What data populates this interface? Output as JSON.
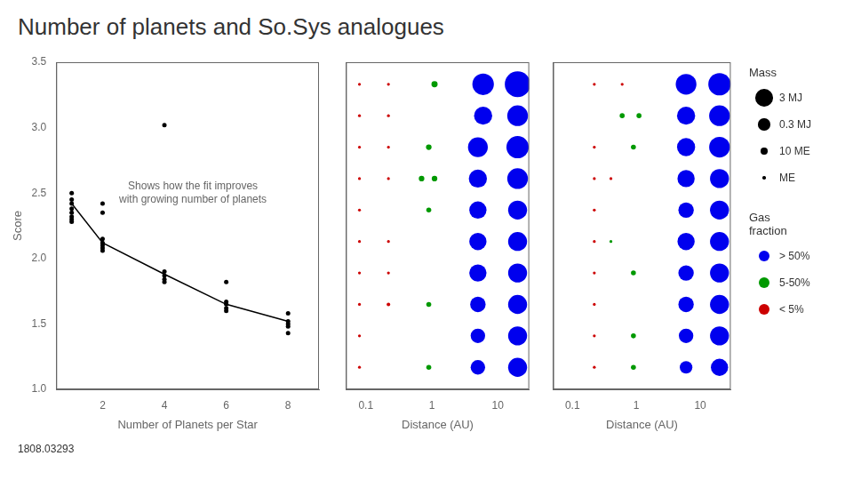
{
  "title": "Number of planets and So.Sys analogues",
  "annotations": [
    "1808.03293"
  ],
  "chart_data": [
    {
      "type": "scatter",
      "xlabel": "Number of Planets per Star",
      "ylabel": "Score",
      "annotations": [
        "Shows how the fit improves\nwith growing number of planets"
      ],
      "xlim": [
        0.5,
        9
      ],
      "ylim": [
        1.0,
        3.5
      ],
      "xticks": [
        2,
        4,
        6,
        8
      ],
      "yticks": [
        {
          "value": 1.0,
          "label": "1.0"
        },
        1.5,
        {
          "value": 2.0,
          "label": "2.0"
        },
        2.5,
        {
          "value": 3.0,
          "label": "3.0"
        },
        3.5
      ],
      "grid": false,
      "series": [
        {
          "type": "scatter",
          "color": "#000000",
          "x": [
            1,
            1,
            1,
            1,
            1,
            1,
            1,
            1,
            2,
            2,
            2,
            2,
            2,
            2,
            2,
            4,
            4,
            4,
            4,
            4,
            6,
            6,
            6,
            6,
            6,
            8,
            8,
            8,
            8,
            8
          ],
          "values": [
            2.5,
            2.45,
            2.42,
            2.38,
            2.35,
            2.32,
            2.3,
            2.28,
            2.42,
            2.35,
            2.15,
            2.12,
            2.1,
            2.08,
            2.06,
            3.02,
            1.9,
            1.87,
            1.84,
            1.82,
            1.82,
            1.67,
            1.65,
            1.62,
            1.6,
            1.58,
            1.52,
            1.5,
            1.48,
            1.43
          ]
        },
        {
          "type": "line",
          "color": "#000000",
          "x": [
            1,
            2,
            4,
            6,
            8
          ],
          "values": [
            2.42,
            2.12,
            1.88,
            1.65,
            1.52
          ]
        }
      ]
    },
    {
      "type": "bubble",
      "xlabel": "Distance (AU)",
      "log": "x",
      "xlim": [
        0.05,
        30
      ],
      "xticks": [
        0.1,
        1,
        10
      ],
      "ylim": [
        0.3,
        10.7
      ],
      "tick_labels": "x",
      "grid": false,
      "series": [
        {
          "x": [
            0.08,
            0.22,
            1.1,
            6.0,
            20.0
          ],
          "values": [
            10,
            10,
            10,
            10,
            10
          ],
          "mass": [
            3,
            3,
            8,
            40,
            50
          ],
          "colors": [
            "#cc0000",
            "#cc0000",
            "#009900",
            "#0000ee",
            "#0000ee"
          ]
        },
        {
          "x": [
            0.08,
            0.22,
            6.0,
            20.0
          ],
          "values": [
            9,
            9,
            9,
            9
          ],
          "mass": [
            3,
            3,
            32,
            38
          ],
          "colors": [
            "#cc0000",
            "#cc0000",
            "#0000ee",
            "#0000ee"
          ]
        },
        {
          "x": [
            0.08,
            0.22,
            0.9,
            5.0,
            20.0
          ],
          "values": [
            8,
            8,
            8,
            8,
            8
          ],
          "mass": [
            3,
            3,
            7,
            36,
            42
          ],
          "colors": [
            "#cc0000",
            "#cc0000",
            "#009900",
            "#0000ee",
            "#0000ee"
          ]
        },
        {
          "x": [
            0.08,
            0.22,
            0.7,
            1.1,
            5.0,
            20.0
          ],
          "values": [
            7,
            7,
            7,
            7,
            7,
            7
          ],
          "mass": [
            3,
            3,
            7,
            7,
            32,
            38
          ],
          "colors": [
            "#cc0000",
            "#cc0000",
            "#009900",
            "#009900",
            "#0000ee",
            "#0000ee"
          ]
        },
        {
          "x": [
            0.08,
            0.9,
            5.0,
            20.0
          ],
          "values": [
            6,
            6,
            6,
            6
          ],
          "mass": [
            3,
            6,
            30,
            34
          ],
          "colors": [
            "#cc0000",
            "#009900",
            "#0000ee",
            "#0000ee"
          ]
        },
        {
          "x": [
            0.08,
            0.22,
            5.0,
            20.0
          ],
          "values": [
            5,
            5,
            5,
            5
          ],
          "mass": [
            3,
            3,
            30,
            34
          ],
          "colors": [
            "#cc0000",
            "#cc0000",
            "#0000ee",
            "#0000ee"
          ]
        },
        {
          "x": [
            0.08,
            0.22,
            5.0,
            20.0
          ],
          "values": [
            4,
            4,
            4,
            4
          ],
          "mass": [
            3,
            3,
            30,
            34
          ],
          "colors": [
            "#cc0000",
            "#cc0000",
            "#0000ee",
            "#0000ee"
          ]
        },
        {
          "x": [
            0.08,
            0.22,
            0.9,
            5.0,
            20.0
          ],
          "values": [
            3,
            3,
            3,
            3,
            3
          ],
          "mass": [
            3,
            4,
            6,
            26,
            34
          ],
          "colors": [
            "#cc0000",
            "#cc0000",
            "#009900",
            "#0000ee",
            "#0000ee"
          ]
        },
        {
          "x": [
            0.08,
            5.0,
            20.0
          ],
          "values": [
            2,
            2,
            2
          ],
          "mass": [
            3,
            24,
            34
          ],
          "colors": [
            "#cc0000",
            "#0000ee",
            "#0000ee"
          ]
        },
        {
          "x": [
            0.08,
            0.9,
            5.0,
            20.0
          ],
          "values": [
            1,
            1,
            1,
            1
          ],
          "mass": [
            3,
            6,
            24,
            34
          ],
          "colors": [
            "#cc0000",
            "#009900",
            "#0000ee",
            "#0000ee"
          ]
        }
      ]
    },
    {
      "type": "bubble",
      "xlabel": "Distance (AU)",
      "log": "x",
      "xlim": [
        0.05,
        30
      ],
      "xticks": [
        0.1,
        1,
        10
      ],
      "ylim": [
        0.3,
        10.7
      ],
      "tick_labels": "x",
      "grid": false,
      "series": [
        {
          "x": [
            0.22,
            0.6,
            6.0,
            20.0
          ],
          "values": [
            10,
            10,
            10,
            10
          ],
          "mass": [
            3,
            3,
            38,
            42
          ],
          "colors": [
            "#cc0000",
            "#cc0000",
            "#0000ee",
            "#0000ee"
          ]
        },
        {
          "x": [
            0.6,
            1.1,
            6.0,
            20.0
          ],
          "values": [
            9,
            9,
            9,
            9
          ],
          "mass": [
            6,
            6,
            32,
            38
          ],
          "colors": [
            "#009900",
            "#009900",
            "#0000ee",
            "#0000ee"
          ]
        },
        {
          "x": [
            0.22,
            0.9,
            6.0,
            20.0
          ],
          "values": [
            8,
            8,
            8,
            8
          ],
          "mass": [
            3,
            6,
            32,
            38
          ],
          "colors": [
            "#cc0000",
            "#009900",
            "#0000ee",
            "#0000ee"
          ]
        },
        {
          "x": [
            0.22,
            0.4,
            6.0,
            20.0
          ],
          "values": [
            7,
            7,
            7,
            7
          ],
          "mass": [
            3,
            3,
            30,
            34
          ],
          "colors": [
            "#cc0000",
            "#cc0000",
            "#0000ee",
            "#0000ee"
          ]
        },
        {
          "x": [
            0.22,
            6.0,
            20.0
          ],
          "values": [
            6,
            6,
            6
          ],
          "mass": [
            3,
            26,
            34
          ],
          "colors": [
            "#cc0000",
            "#0000ee",
            "#0000ee"
          ]
        },
        {
          "x": [
            0.22,
            0.4,
            6.0,
            20.0
          ],
          "values": [
            5,
            5,
            5,
            5
          ],
          "mass": [
            3,
            3,
            30,
            34
          ],
          "colors": [
            "#cc0000",
            "#009900",
            "#0000ee",
            "#0000ee"
          ]
        },
        {
          "x": [
            0.22,
            0.9,
            6.0,
            20.0
          ],
          "values": [
            4,
            4,
            4,
            4
          ],
          "mass": [
            3,
            6,
            26,
            34
          ],
          "colors": [
            "#cc0000",
            "#009900",
            "#0000ee",
            "#0000ee"
          ]
        },
        {
          "x": [
            0.22,
            6.0,
            20.0
          ],
          "values": [
            3,
            3,
            3
          ],
          "mass": [
            3,
            26,
            34
          ],
          "colors": [
            "#cc0000",
            "#0000ee",
            "#0000ee"
          ]
        },
        {
          "x": [
            0.22,
            0.9,
            6.0,
            20.0
          ],
          "values": [
            2,
            2,
            2,
            2
          ],
          "mass": [
            3,
            6,
            24,
            34
          ],
          "colors": [
            "#cc0000",
            "#009900",
            "#0000ee",
            "#0000ee"
          ]
        },
        {
          "x": [
            0.22,
            0.9,
            6.0,
            20.0
          ],
          "values": [
            1,
            1,
            1,
            1
          ],
          "mass": [
            3,
            6,
            20,
            30
          ],
          "colors": [
            "#cc0000",
            "#009900",
            "#0000ee",
            "#0000ee"
          ]
        }
      ],
      "size_legend": {
        "title": "Mass",
        "labels": [
          "3 MJ",
          "0.3 MJ",
          "10 ME",
          "ME"
        ],
        "sizes": [
          200,
          90,
          28,
          6
        ]
      },
      "color_legend": {
        "title": "Gas\nfraction",
        "labels": [
          "> 50%",
          "5-50%",
          "< 5%"
        ],
        "colors": [
          "#0000ee",
          "#009900",
          "#cc0000"
        ]
      }
    }
  ]
}
